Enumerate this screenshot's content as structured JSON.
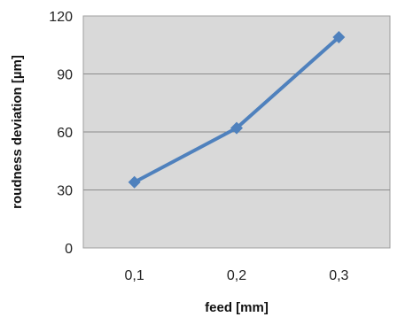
{
  "chart_data": {
    "type": "line",
    "categories": [
      "0,1",
      "0,2",
      "0,3"
    ],
    "series": [
      {
        "values": [
          34,
          62,
          109
        ],
        "color": "#4f81bd",
        "marker": "diamond"
      }
    ],
    "xlabel": "feed [mm]",
    "ylabel": "roudness deviation [µm]",
    "ylim": [
      0,
      120
    ],
    "yticks": [
      0,
      30,
      60,
      90,
      120
    ],
    "grid": "horizontal",
    "plot_background": "#d9d9d9",
    "legend": "none"
  }
}
